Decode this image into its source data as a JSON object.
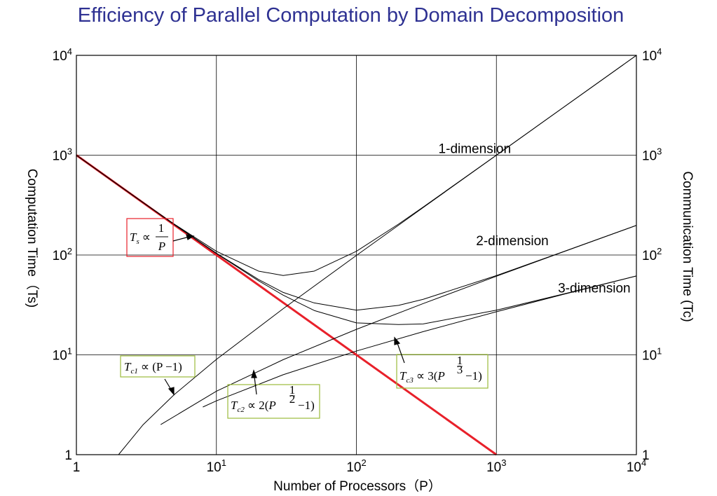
{
  "title": "Efficiency of Parallel Computation by Domain Decomposition",
  "chart_data": {
    "type": "line",
    "title": "Efficiency of Parallel Computation by Domain Decomposition",
    "xlabel": "Number of Processors（P）",
    "ylabel_left": "Computation Time（Ts)",
    "ylabel_right": "Communication Time (Tc)",
    "xscale": "log",
    "yscale": "log",
    "xlim": [
      1,
      10000
    ],
    "ylim": [
      1,
      10000
    ],
    "grid": true,
    "x_ticks": [
      {
        "base": "1",
        "exp": ""
      },
      {
        "base": "10",
        "exp": "1"
      },
      {
        "base": "10",
        "exp": "2"
      },
      {
        "base": "10",
        "exp": "3"
      },
      {
        "base": "10",
        "exp": "4"
      }
    ],
    "y_ticks": [
      {
        "base": "1",
        "exp": ""
      },
      {
        "base": "10",
        "exp": "1"
      },
      {
        "base": "10",
        "exp": "2"
      },
      {
        "base": "10",
        "exp": "3"
      },
      {
        "base": "10",
        "exp": "4"
      }
    ],
    "series": [
      {
        "key": "Ts",
        "color": "#e8202a",
        "x": [
          1,
          1000
        ],
        "y": [
          1000,
          1
        ],
        "formula": "Ts ∝ 1/P"
      },
      {
        "key": "Tc1",
        "color": "#000000",
        "x": [
          2,
          3,
          5,
          10,
          30,
          100,
          300,
          1000,
          3000,
          10000
        ],
        "y": [
          1,
          2,
          4,
          9,
          29,
          99,
          299,
          999,
          2999,
          9999
        ],
        "formula": "Tc1 ∝ (P−1)"
      },
      {
        "key": "Tc2",
        "color": "#000000",
        "x": [
          4,
          10,
          30,
          100,
          300,
          1000,
          3000,
          10000
        ],
        "y": [
          2,
          4.32,
          8.95,
          18,
          32.64,
          61.25,
          107.5,
          198
        ],
        "formula": "Tc2 ∝ 2(P^(1/2) −1)"
      },
      {
        "key": "Tc3",
        "color": "#000000",
        "x": [
          8,
          10,
          30,
          100,
          300,
          1000,
          3000,
          10000
        ],
        "y": [
          3,
          3.46,
          6.32,
          10.92,
          17.08,
          27,
          40.27,
          61.63
        ],
        "formula": "Tc3 ∝ 3(P^(1/3) −1)"
      },
      {
        "name": "1-dimension",
        "color": "#000000",
        "x": [
          1,
          2,
          3,
          5,
          10,
          20,
          30,
          50,
          100,
          200,
          300,
          1000,
          3000,
          10000
        ],
        "y": [
          1000,
          501,
          335.3,
          204,
          109,
          69,
          62.3,
          69,
          109,
          204,
          302.3,
          1000,
          3000,
          10000
        ]
      },
      {
        "name": "2-dimension",
        "color": "#000000",
        "x": [
          1,
          2,
          3,
          5,
          10,
          20,
          30,
          50,
          100,
          200,
          300,
          1000,
          3000,
          10000
        ],
        "y": [
          1000,
          500.8,
          334.8,
          202.5,
          104.3,
          56.9,
          42.2,
          33.1,
          28,
          31.3,
          36,
          62.2,
          107.8,
          198.1
        ]
      },
      {
        "name": "3-dimension",
        "color": "#000000",
        "x": [
          1,
          2,
          3,
          5,
          10,
          20,
          30,
          50,
          100,
          200,
          300,
          1000,
          3000,
          10000
        ],
        "y": [
          1000,
          500.8,
          334.2,
          201.9,
          103.5,
          55.2,
          39.6,
          27.8,
          20.9,
          20.1,
          20.4,
          28,
          40.6,
          61.7
        ]
      }
    ],
    "series_labels": [
      {
        "text": "1-dimension",
        "x": 700,
        "y": 1050
      },
      {
        "text": "2-dimension",
        "x": 1300,
        "y": 125
      },
      {
        "text": "3-dimension",
        "x": 5000,
        "y": 42
      }
    ],
    "formulas": {
      "ts": {
        "T": "T",
        "sub": "s",
        "prop": "∝",
        "num": "1",
        "den": "P"
      },
      "tc1": {
        "T": "T",
        "sub": "c1",
        "rest": "∝ (P −1)"
      },
      "tc2": {
        "T": "T",
        "sub": "c2",
        "pre": "∝ 2(",
        "P": "P",
        "exp_num": "1",
        "exp_den": "2",
        "post": "−1)"
      },
      "tc3": {
        "T": "T",
        "sub": "c3",
        "pre": "∝ 3(",
        "P": "P",
        "exp_num": "1",
        "exp_den": "3",
        "post": "−1)"
      }
    },
    "colors": {
      "ts_line": "#e8202a",
      "ts_box": "#e8202a",
      "tc_box": "#9bbb3b",
      "grid": "#000000",
      "title": "#2e3192"
    }
  }
}
